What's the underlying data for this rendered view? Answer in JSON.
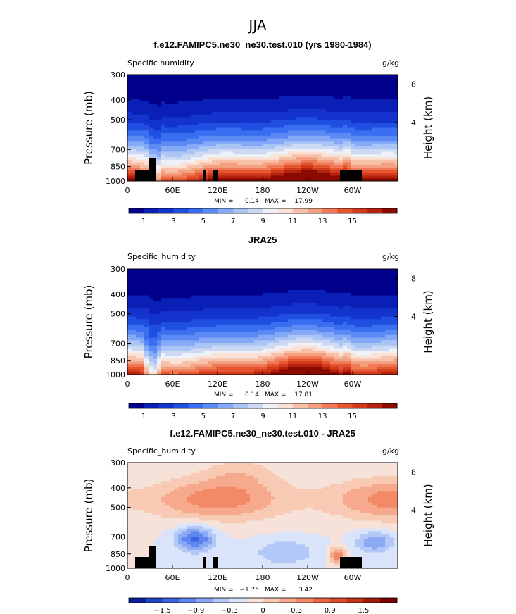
{
  "figure_title": "JJA",
  "palette": {
    "abs": [
      "#00008b",
      "#0a1fb5",
      "#1433cc",
      "#1e4fe0",
      "#3a6ef0",
      "#5b8af5",
      "#85a9f7",
      "#aac4f5",
      "#cdd9f2",
      "#eef1f7",
      "#fbe0d4",
      "#f7c0a8",
      "#f49f80",
      "#ef7a55",
      "#e45530",
      "#d23a1c",
      "#b52310",
      "#8b0a00"
    ],
    "diff": [
      "#0a1f9a",
      "#1f45c7",
      "#3a64e0",
      "#5f86ef",
      "#8aa9f5",
      "#b3c8f6",
      "#d9e4fa",
      "#f6e2d8",
      "#f8c9b3",
      "#f7a98d",
      "#f28a68",
      "#ea6644",
      "#de4a2b",
      "#c53419",
      "#9e1a0a",
      "#7a0000"
    ]
  },
  "chart_data": [
    {
      "type": "heatmap",
      "title": "f.e12.FAMIPC5.ne30_ne30.test.010 (yrs 1980-1984)",
      "variable_label": "Specific humidity",
      "units": "g/kg",
      "ylabel": "Pressure (mb)",
      "y2label": "Height (km)",
      "x_ticks": [
        "0",
        "60E",
        "120E",
        "180",
        "120W",
        "60W"
      ],
      "y_ticks": [
        "300",
        "400",
        "500",
        "700",
        "850",
        "1000"
      ],
      "y2_ticks": [
        "8",
        "4"
      ],
      "stats": {
        "min_label": "MIN =",
        "min": "0.14",
        "max_label": "MAX =",
        "max": "17.99"
      },
      "colorbar_labels": [
        "1",
        "3",
        "5",
        "7",
        "9",
        "11",
        "13",
        "15"
      ],
      "palette": "abs",
      "field": "model"
    },
    {
      "type": "heatmap",
      "title": "JRA25",
      "variable_label": "Specific_humidity",
      "units": "g/kg",
      "ylabel": "Pressure (mb)",
      "y2label": "Height (km)",
      "x_ticks": [
        "0",
        "60E",
        "120E",
        "180",
        "120W",
        "60W"
      ],
      "y_ticks": [
        "300",
        "400",
        "500",
        "700",
        "850",
        "1000"
      ],
      "y2_ticks": [
        "8",
        "4"
      ],
      "stats": {
        "min_label": "MIN =",
        "min": "0.14",
        "max_label": "MAX =",
        "max": "17.81"
      },
      "colorbar_labels": [
        "1",
        "3",
        "5",
        "7",
        "9",
        "11",
        "13",
        "15"
      ],
      "palette": "abs",
      "field": "obs"
    },
    {
      "type": "heatmap",
      "title": "f.e12.FAMIPC5.ne30_ne30.test.010 - JRA25",
      "variable_label": "Specific_humidity",
      "units": "g/kg",
      "ylabel": "Pressure (mb)",
      "y2label": "Height (km)",
      "x_ticks": [
        "0",
        "60E",
        "120E",
        "180",
        "120W",
        "60W"
      ],
      "y_ticks": [
        "300",
        "400",
        "500",
        "700",
        "850",
        "1000"
      ],
      "y2_ticks": [
        "8",
        "4"
      ],
      "stats": {
        "min_label": "MIN =",
        "min": "−1.75",
        "max_label": "MAX =",
        "max": "3.42"
      },
      "colorbar_labels": [
        "−1.5",
        "−0.9",
        "−0.3",
        "0",
        "0.3",
        "0.9",
        "1.5"
      ],
      "palette": "diff",
      "field": "diff"
    }
  ]
}
